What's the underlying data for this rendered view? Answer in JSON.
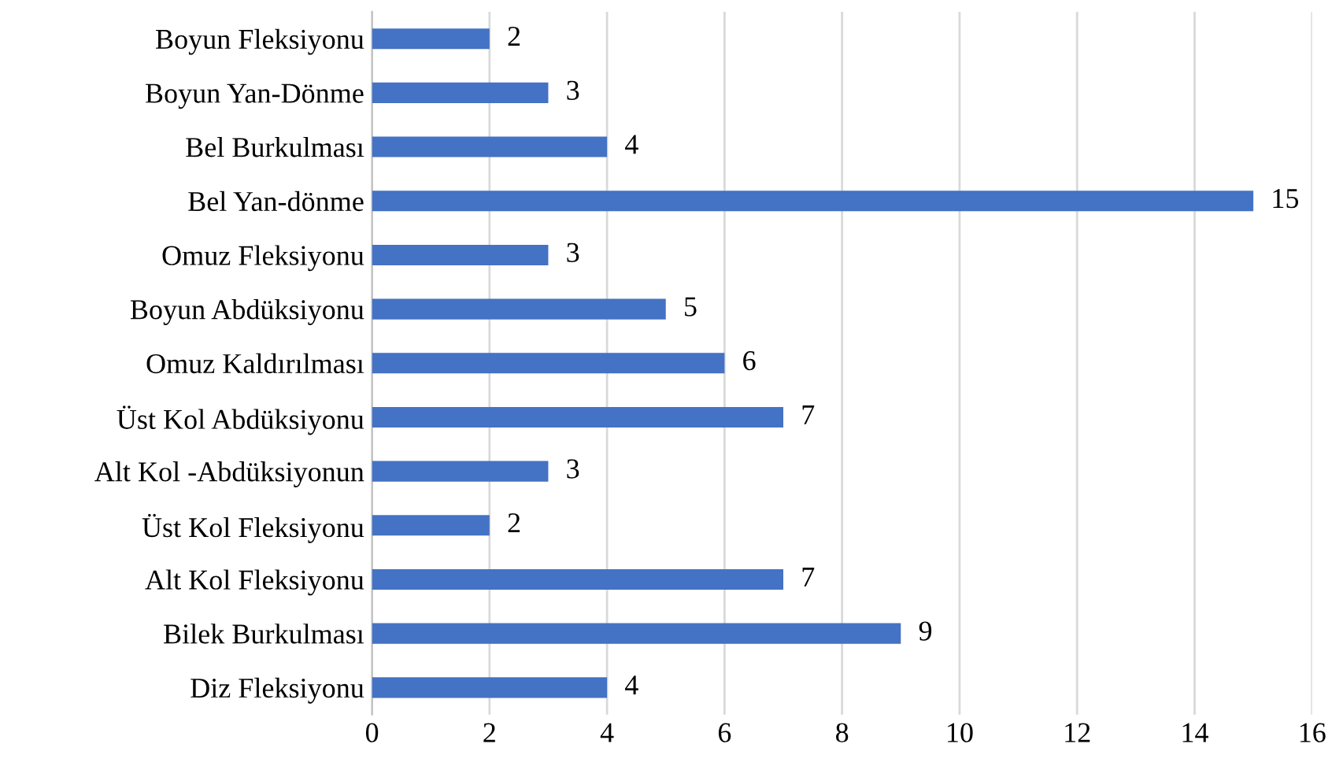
{
  "chart_data": {
    "type": "bar",
    "orientation": "horizontal",
    "categories": [
      "Boyun Fleksiyonu",
      "Boyun Yan-Dönme",
      "Bel Burkulması",
      "Bel Yan-dönme",
      "Omuz Fleksiyonu",
      "Boyun Abdüksiyonu",
      "Omuz Kaldırılması",
      "Üst Kol Abdüksiyonu",
      "Alt Kol -Abdüksiyonun",
      "Üst Kol Fleksiyonu",
      "Alt Kol Fleksiyonu",
      "Bilek Burkulması",
      "Diz Fleksiyonu"
    ],
    "values": [
      2,
      3,
      4,
      15,
      3,
      5,
      6,
      7,
      3,
      2,
      7,
      9,
      4
    ],
    "color": "#4472c4",
    "xlim": [
      0,
      16
    ],
    "xticks": [
      0,
      2,
      4,
      6,
      8,
      10,
      12,
      14,
      16
    ],
    "grid": "x",
    "data_labels": true
  }
}
